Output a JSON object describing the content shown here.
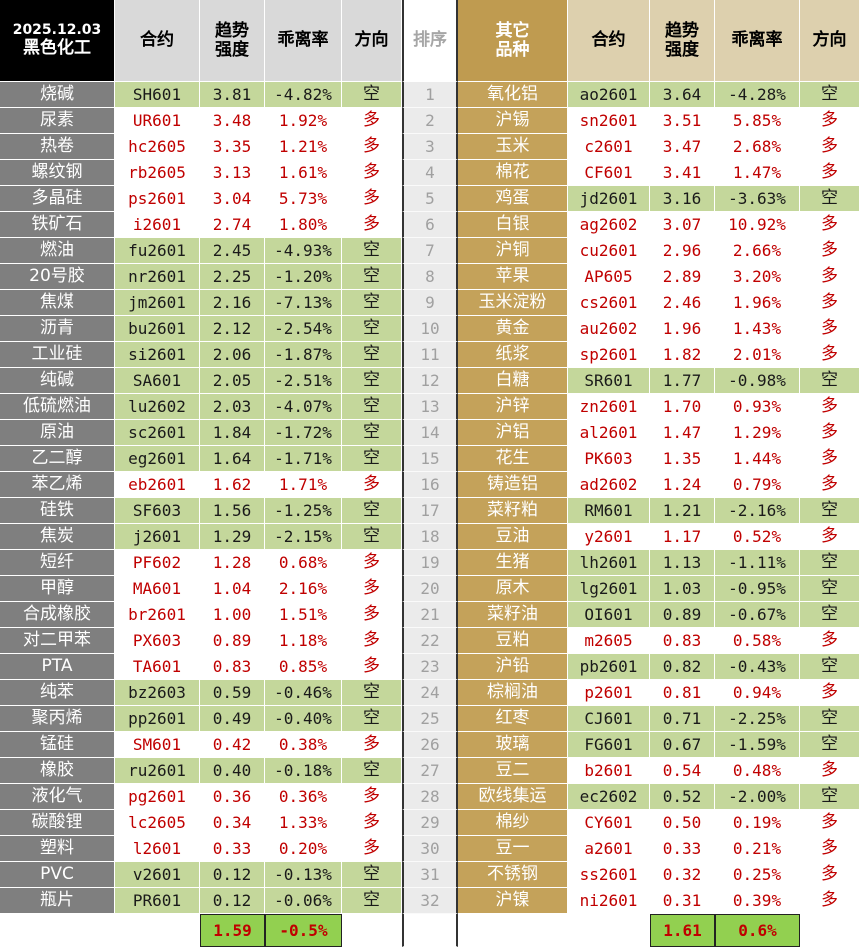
{
  "header": {
    "date": "2025.12.03",
    "left_group": "黑色化工",
    "left_columns": {
      "contract": "合约",
      "strength": [
        "趋势",
        "强度"
      ],
      "deviation": "乖离率",
      "direction": "方向"
    },
    "rank": "排序",
    "right_group": [
      "其它",
      "品种"
    ],
    "right_columns": {
      "contract": "合约",
      "strength": [
        "趋势",
        "强度"
      ],
      "deviation": "乖离率",
      "direction": "方向"
    }
  },
  "direction_styles": {
    "空": {
      "fill": "#c4d79b",
      "text": "#1a1a1a"
    },
    "多": {
      "fill": "#ffffff",
      "text": "#c00000"
    }
  },
  "ranks": [
    1,
    2,
    3,
    4,
    5,
    6,
    7,
    8,
    9,
    10,
    11,
    12,
    13,
    14,
    15,
    16,
    17,
    18,
    19,
    20,
    21,
    22,
    23,
    24,
    25,
    26,
    27,
    28,
    29,
    30,
    31,
    32
  ],
  "left_rows": [
    [
      "烧碱",
      "SH601",
      "3.81",
      "-4.82%",
      "空"
    ],
    [
      "尿素",
      "UR601",
      "3.48",
      "1.92%",
      "多"
    ],
    [
      "热卷",
      "hc2605",
      "3.35",
      "1.21%",
      "多"
    ],
    [
      "螺纹钢",
      "rb2605",
      "3.13",
      "1.61%",
      "多"
    ],
    [
      "多晶硅",
      "ps2601",
      "3.04",
      "5.73%",
      "多"
    ],
    [
      "铁矿石",
      "i2601",
      "2.74",
      "1.80%",
      "多"
    ],
    [
      "燃油",
      "fu2601",
      "2.45",
      "-4.93%",
      "空"
    ],
    [
      "20号胶",
      "nr2601",
      "2.25",
      "-1.20%",
      "空"
    ],
    [
      "焦煤",
      "jm2601",
      "2.16",
      "-7.13%",
      "空"
    ],
    [
      "沥青",
      "bu2601",
      "2.12",
      "-2.54%",
      "空"
    ],
    [
      "工业硅",
      "si2601",
      "2.06",
      "-1.87%",
      "空"
    ],
    [
      "纯碱",
      "SA601",
      "2.05",
      "-2.51%",
      "空"
    ],
    [
      "低硫燃油",
      "lu2602",
      "2.03",
      "-4.07%",
      "空"
    ],
    [
      "原油",
      "sc2601",
      "1.84",
      "-1.72%",
      "空"
    ],
    [
      "乙二醇",
      "eg2601",
      "1.64",
      "-1.71%",
      "空"
    ],
    [
      "苯乙烯",
      "eb2601",
      "1.62",
      "1.71%",
      "多"
    ],
    [
      "硅铁",
      "SF603",
      "1.56",
      "-1.25%",
      "空"
    ],
    [
      "焦炭",
      "j2601",
      "1.29",
      "-2.15%",
      "空"
    ],
    [
      "短纤",
      "PF602",
      "1.28",
      "0.68%",
      "多"
    ],
    [
      "甲醇",
      "MA601",
      "1.04",
      "2.16%",
      "多"
    ],
    [
      "合成橡胶",
      "br2601",
      "1.00",
      "1.51%",
      "多"
    ],
    [
      "对二甲苯",
      "PX603",
      "0.89",
      "1.18%",
      "多"
    ],
    [
      "PTA",
      "TA601",
      "0.83",
      "0.85%",
      "多"
    ],
    [
      "纯苯",
      "bz2603",
      "0.59",
      "-0.46%",
      "空"
    ],
    [
      "聚丙烯",
      "pp2601",
      "0.49",
      "-0.40%",
      "空"
    ],
    [
      "锰硅",
      "SM601",
      "0.42",
      "0.38%",
      "多"
    ],
    [
      "橡胶",
      "ru2601",
      "0.40",
      "-0.18%",
      "空"
    ],
    [
      "液化气",
      "pg2601",
      "0.36",
      "0.36%",
      "多"
    ],
    [
      "碳酸锂",
      "lc2605",
      "0.34",
      "1.33%",
      "多"
    ],
    [
      "塑料",
      "l2601",
      "0.33",
      "0.20%",
      "多"
    ],
    [
      "PVC",
      "v2601",
      "0.12",
      "-0.13%",
      "空"
    ],
    [
      "瓶片",
      "PR601",
      "0.12",
      "-0.06%",
      "空"
    ]
  ],
  "right_rows": [
    [
      "氧化铝",
      "ao2601",
      "3.64",
      "-4.28%",
      "空"
    ],
    [
      "沪锡",
      "sn2601",
      "3.51",
      "5.85%",
      "多"
    ],
    [
      "玉米",
      "c2601",
      "3.47",
      "2.68%",
      "多"
    ],
    [
      "棉花",
      "CF601",
      "3.41",
      "1.47%",
      "多"
    ],
    [
      "鸡蛋",
      "jd2601",
      "3.16",
      "-3.63%",
      "空"
    ],
    [
      "白银",
      "ag2602",
      "3.07",
      "10.92%",
      "多"
    ],
    [
      "沪铜",
      "cu2601",
      "2.96",
      "2.66%",
      "多"
    ],
    [
      "苹果",
      "AP605",
      "2.89",
      "3.20%",
      "多"
    ],
    [
      "玉米淀粉",
      "cs2601",
      "2.46",
      "1.96%",
      "多"
    ],
    [
      "黄金",
      "au2602",
      "1.96",
      "1.43%",
      "多"
    ],
    [
      "纸浆",
      "sp2601",
      "1.82",
      "2.01%",
      "多"
    ],
    [
      "白糖",
      "SR601",
      "1.77",
      "-0.98%",
      "空"
    ],
    [
      "沪锌",
      "zn2601",
      "1.70",
      "0.93%",
      "多"
    ],
    [
      "沪铝",
      "al2601",
      "1.47",
      "1.29%",
      "多"
    ],
    [
      "花生",
      "PK603",
      "1.35",
      "1.44%",
      "多"
    ],
    [
      "铸造铝",
      "ad2602",
      "1.24",
      "0.79%",
      "多"
    ],
    [
      "菜籽粕",
      "RM601",
      "1.21",
      "-2.16%",
      "空"
    ],
    [
      "豆油",
      "y2601",
      "1.17",
      "0.52%",
      "多"
    ],
    [
      "生猪",
      "lh2601",
      "1.13",
      "-1.11%",
      "空"
    ],
    [
      "原木",
      "lg2601",
      "1.03",
      "-0.95%",
      "空"
    ],
    [
      "菜籽油",
      "OI601",
      "0.89",
      "-0.67%",
      "空"
    ],
    [
      "豆粕",
      "m2605",
      "0.83",
      "0.58%",
      "多"
    ],
    [
      "沪铅",
      "pb2601",
      "0.82",
      "-0.43%",
      "空"
    ],
    [
      "棕榈油",
      "p2601",
      "0.81",
      "0.94%",
      "多"
    ],
    [
      "红枣",
      "CJ601",
      "0.71",
      "-2.25%",
      "空"
    ],
    [
      "玻璃",
      "FG601",
      "0.67",
      "-1.59%",
      "空"
    ],
    [
      "豆二",
      "b2601",
      "0.54",
      "0.48%",
      "多"
    ],
    [
      "欧线集运",
      "ec2602",
      "0.52",
      "-2.00%",
      "空"
    ],
    [
      "棉纱",
      "CY601",
      "0.50",
      "0.19%",
      "多"
    ],
    [
      "豆一",
      "a2601",
      "0.33",
      "0.21%",
      "多"
    ],
    [
      "不锈钢",
      "ss2601",
      "0.32",
      "0.25%",
      "多"
    ],
    [
      "沪镍",
      "ni2601",
      "0.31",
      "0.39%",
      "多"
    ]
  ],
  "left_summary": {
    "strength": "1.59",
    "deviation": "-0.5%"
  },
  "right_summary": {
    "strength": "1.61",
    "deviation": "0.6%"
  }
}
